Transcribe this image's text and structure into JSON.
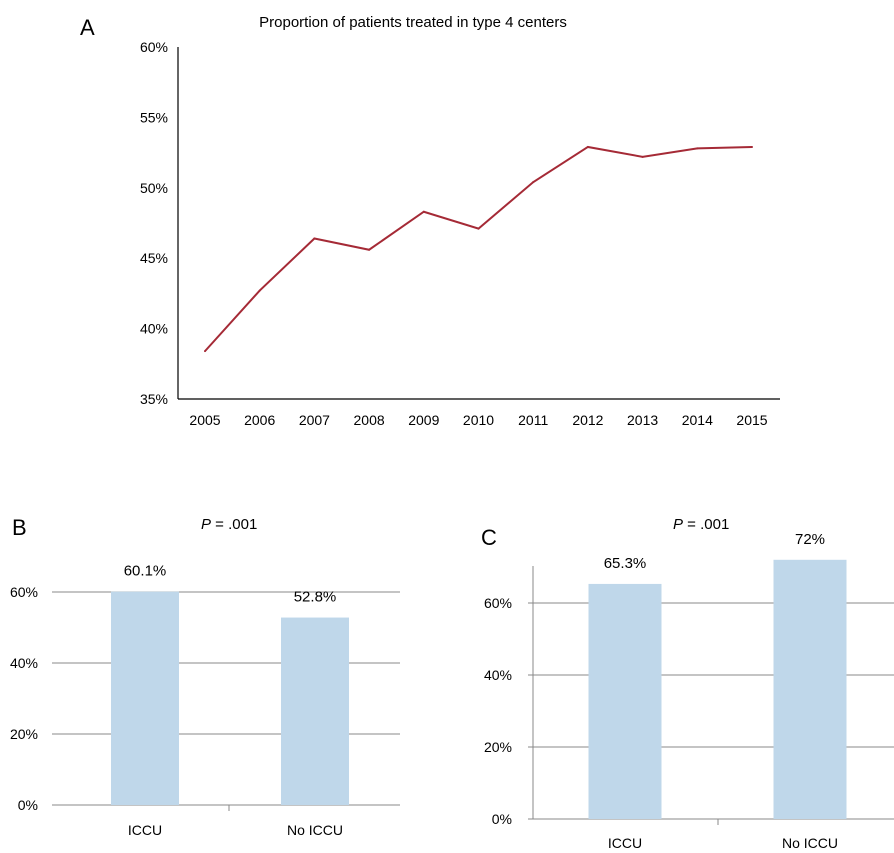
{
  "colors": {
    "line": "#A52A36",
    "bar": "#BFD7EA",
    "axis": "#000000",
    "grid": "#888888"
  },
  "chart_data": [
    {
      "panel": "A",
      "type": "line",
      "title": "Proportion of patients treated in type 4 centers",
      "x": [
        "2005",
        "2006",
        "2007",
        "2008",
        "2009",
        "2010",
        "2011",
        "2012",
        "2013",
        "2014",
        "2015"
      ],
      "series": [
        {
          "values": [
            38.4,
            42.7,
            46.4,
            45.6,
            48.3,
            47.1,
            50.4,
            52.9,
            52.2,
            52.8,
            52.9
          ]
        }
      ],
      "ylim": [
        35,
        60
      ],
      "yticks": [
        "35%",
        "40%",
        "45%",
        "50%",
        "55%",
        "60%"
      ],
      "grid": false
    },
    {
      "panel": "B",
      "type": "bar",
      "categories": [
        "ICCU",
        "No ICCU"
      ],
      "values": [
        60.1,
        52.8
      ],
      "data_labels": [
        "60.1%",
        "52.8%"
      ],
      "annotation": {
        "p_symbol": "P",
        "p_rest": " = .001"
      },
      "ylim": [
        0,
        60
      ],
      "yticks": [
        "0%",
        "20%",
        "40%",
        "60%"
      ],
      "grid": true
    },
    {
      "panel": "C",
      "type": "bar",
      "categories": [
        "ICCU",
        "No ICCU"
      ],
      "values": [
        65.3,
        72
      ],
      "data_labels": [
        "65.3%",
        "72%"
      ],
      "annotation": {
        "p_symbol": "P",
        "p_rest": " = .001"
      },
      "ylim": [
        0,
        60
      ],
      "yticks": [
        "0%",
        "20%",
        "40%",
        "60%"
      ],
      "grid": true
    }
  ]
}
